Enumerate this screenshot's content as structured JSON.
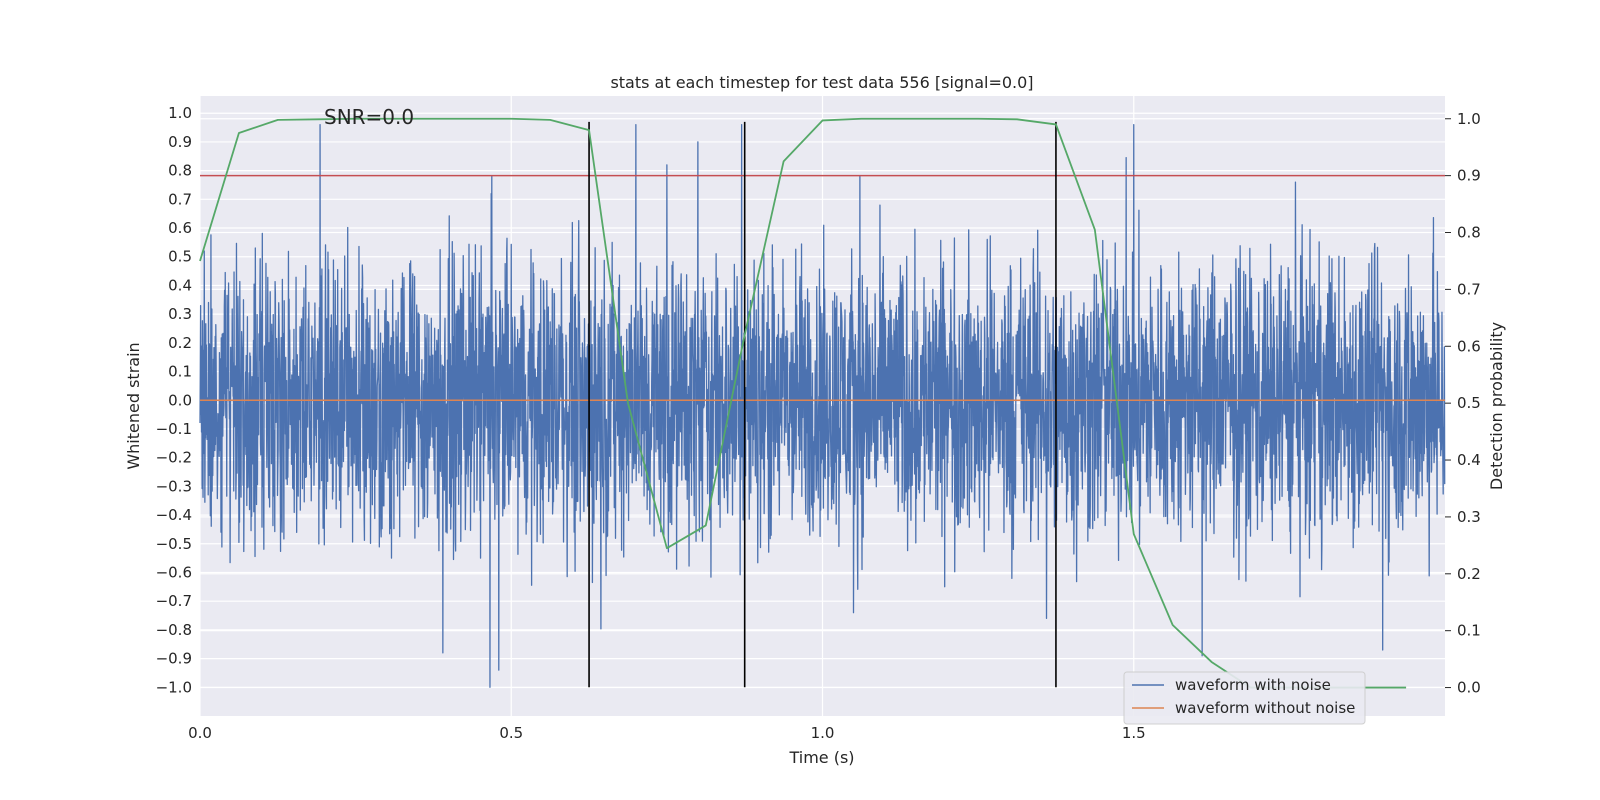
{
  "chart_data": {
    "type": "line",
    "title": "stats at each timestep for test data 556 [signal=0.0]",
    "xlabel": "Time (s)",
    "ylabel_left": "Whitened strain",
    "ylabel_right": "Detection probability",
    "annotation": "SNR=0.0",
    "xlim": [
      0.0,
      2.0
    ],
    "ylim_left": [
      -1.1,
      1.06
    ],
    "ylim_right": [
      -0.05,
      1.04
    ],
    "x_ticks": [
      0.0,
      0.5,
      1.0,
      1.5
    ],
    "x_tick_labels": [
      "0.0",
      "0.5",
      "1.0",
      "1.5"
    ],
    "y_ticks_left": [
      -1.0,
      -0.9,
      -0.8,
      -0.7,
      -0.6,
      -0.5,
      -0.4,
      -0.3,
      -0.2,
      -0.1,
      0.0,
      0.1,
      0.2,
      0.3,
      0.4,
      0.5,
      0.6,
      0.7,
      0.8,
      0.9,
      1.0
    ],
    "y_tick_labels_left": [
      "−1.0",
      "−0.9",
      "−0.8",
      "−0.7",
      "−0.6",
      "−0.5",
      "−0.4",
      "−0.3",
      "−0.2",
      "−0.1",
      "0.0",
      "0.1",
      "0.2",
      "0.3",
      "0.4",
      "0.5",
      "0.6",
      "0.7",
      "0.8",
      "0.9",
      "1.0"
    ],
    "y_ticks_right": [
      0.0,
      0.1,
      0.2,
      0.3,
      0.4,
      0.5,
      0.6,
      0.7,
      0.8,
      0.9,
      1.0
    ],
    "y_tick_labels_right": [
      "0.0",
      "0.1",
      "0.2",
      "0.3",
      "0.4",
      "0.5",
      "0.6",
      "0.7",
      "0.8",
      "0.9",
      "1.0"
    ],
    "grid": true,
    "legend_position": "bottom-right",
    "series": [
      {
        "name": "waveform with noise",
        "axis": "left",
        "color": "#4c72b0",
        "note": "dense noise trace approx. uniform in [-0.65, 0.65] with occasional spikes; sampled at 2048 Hz",
        "sample_rate": 2048,
        "spikes": [
          {
            "x": 0.466,
            "y": -1.0
          },
          {
            "x": 0.48,
            "y": -0.94
          },
          {
            "x": 0.468,
            "y": 0.72
          },
          {
            "x": 0.39,
            "y": -0.88
          },
          {
            "x": 0.7,
            "y": 0.96
          },
          {
            "x": 0.8,
            "y": 0.9
          },
          {
            "x": 0.75,
            "y": 0.82
          },
          {
            "x": 0.87,
            "y": 0.96
          },
          {
            "x": 1.06,
            "y": 0.78
          },
          {
            "x": 1.61,
            "y": -0.89
          },
          {
            "x": 1.76,
            "y": 0.76
          },
          {
            "x": 1.9,
            "y": -0.87
          },
          {
            "x": 1.36,
            "y": -0.76
          },
          {
            "x": 1.05,
            "y": -0.74
          }
        ]
      },
      {
        "name": "waveform without noise",
        "axis": "left",
        "color": "#dd8452",
        "x": [
          0.0,
          2.0
        ],
        "y": [
          0.0,
          0.0
        ]
      },
      {
        "axis": "right",
        "color": "#55a868",
        "x": [
          0.0,
          0.0625,
          0.125,
          0.1875,
          0.25,
          0.3125,
          0.375,
          0.4375,
          0.5,
          0.5625,
          0.625,
          0.6875,
          0.75,
          0.8125,
          0.875,
          0.9375,
          1.0,
          1.0625,
          1.125,
          1.1875,
          1.25,
          1.3125,
          1.375,
          1.4375,
          1.5,
          1.5625,
          1.625,
          1.6875,
          1.75,
          1.8125,
          1.875,
          1.9375
        ],
        "y": [
          0.75,
          0.975,
          0.998,
          0.999,
          1.0,
          1.0,
          1.0,
          1.0,
          1.0,
          0.998,
          0.98,
          0.5,
          0.245,
          0.285,
          0.62,
          0.925,
          0.997,
          1.0,
          1.0,
          1.0,
          1.0,
          0.999,
          0.99,
          0.805,
          0.27,
          0.11,
          0.045,
          0.0,
          0.0,
          0.0,
          0.0,
          0.0
        ]
      }
    ],
    "threshold_line": {
      "axis": "right",
      "y": 0.9,
      "color": "#c44e52"
    },
    "vertical_lines": {
      "x": [
        0.625,
        0.875,
        1.375
      ],
      "axis_range": [
        -1.0,
        0.97
      ],
      "color": "#000000"
    }
  }
}
